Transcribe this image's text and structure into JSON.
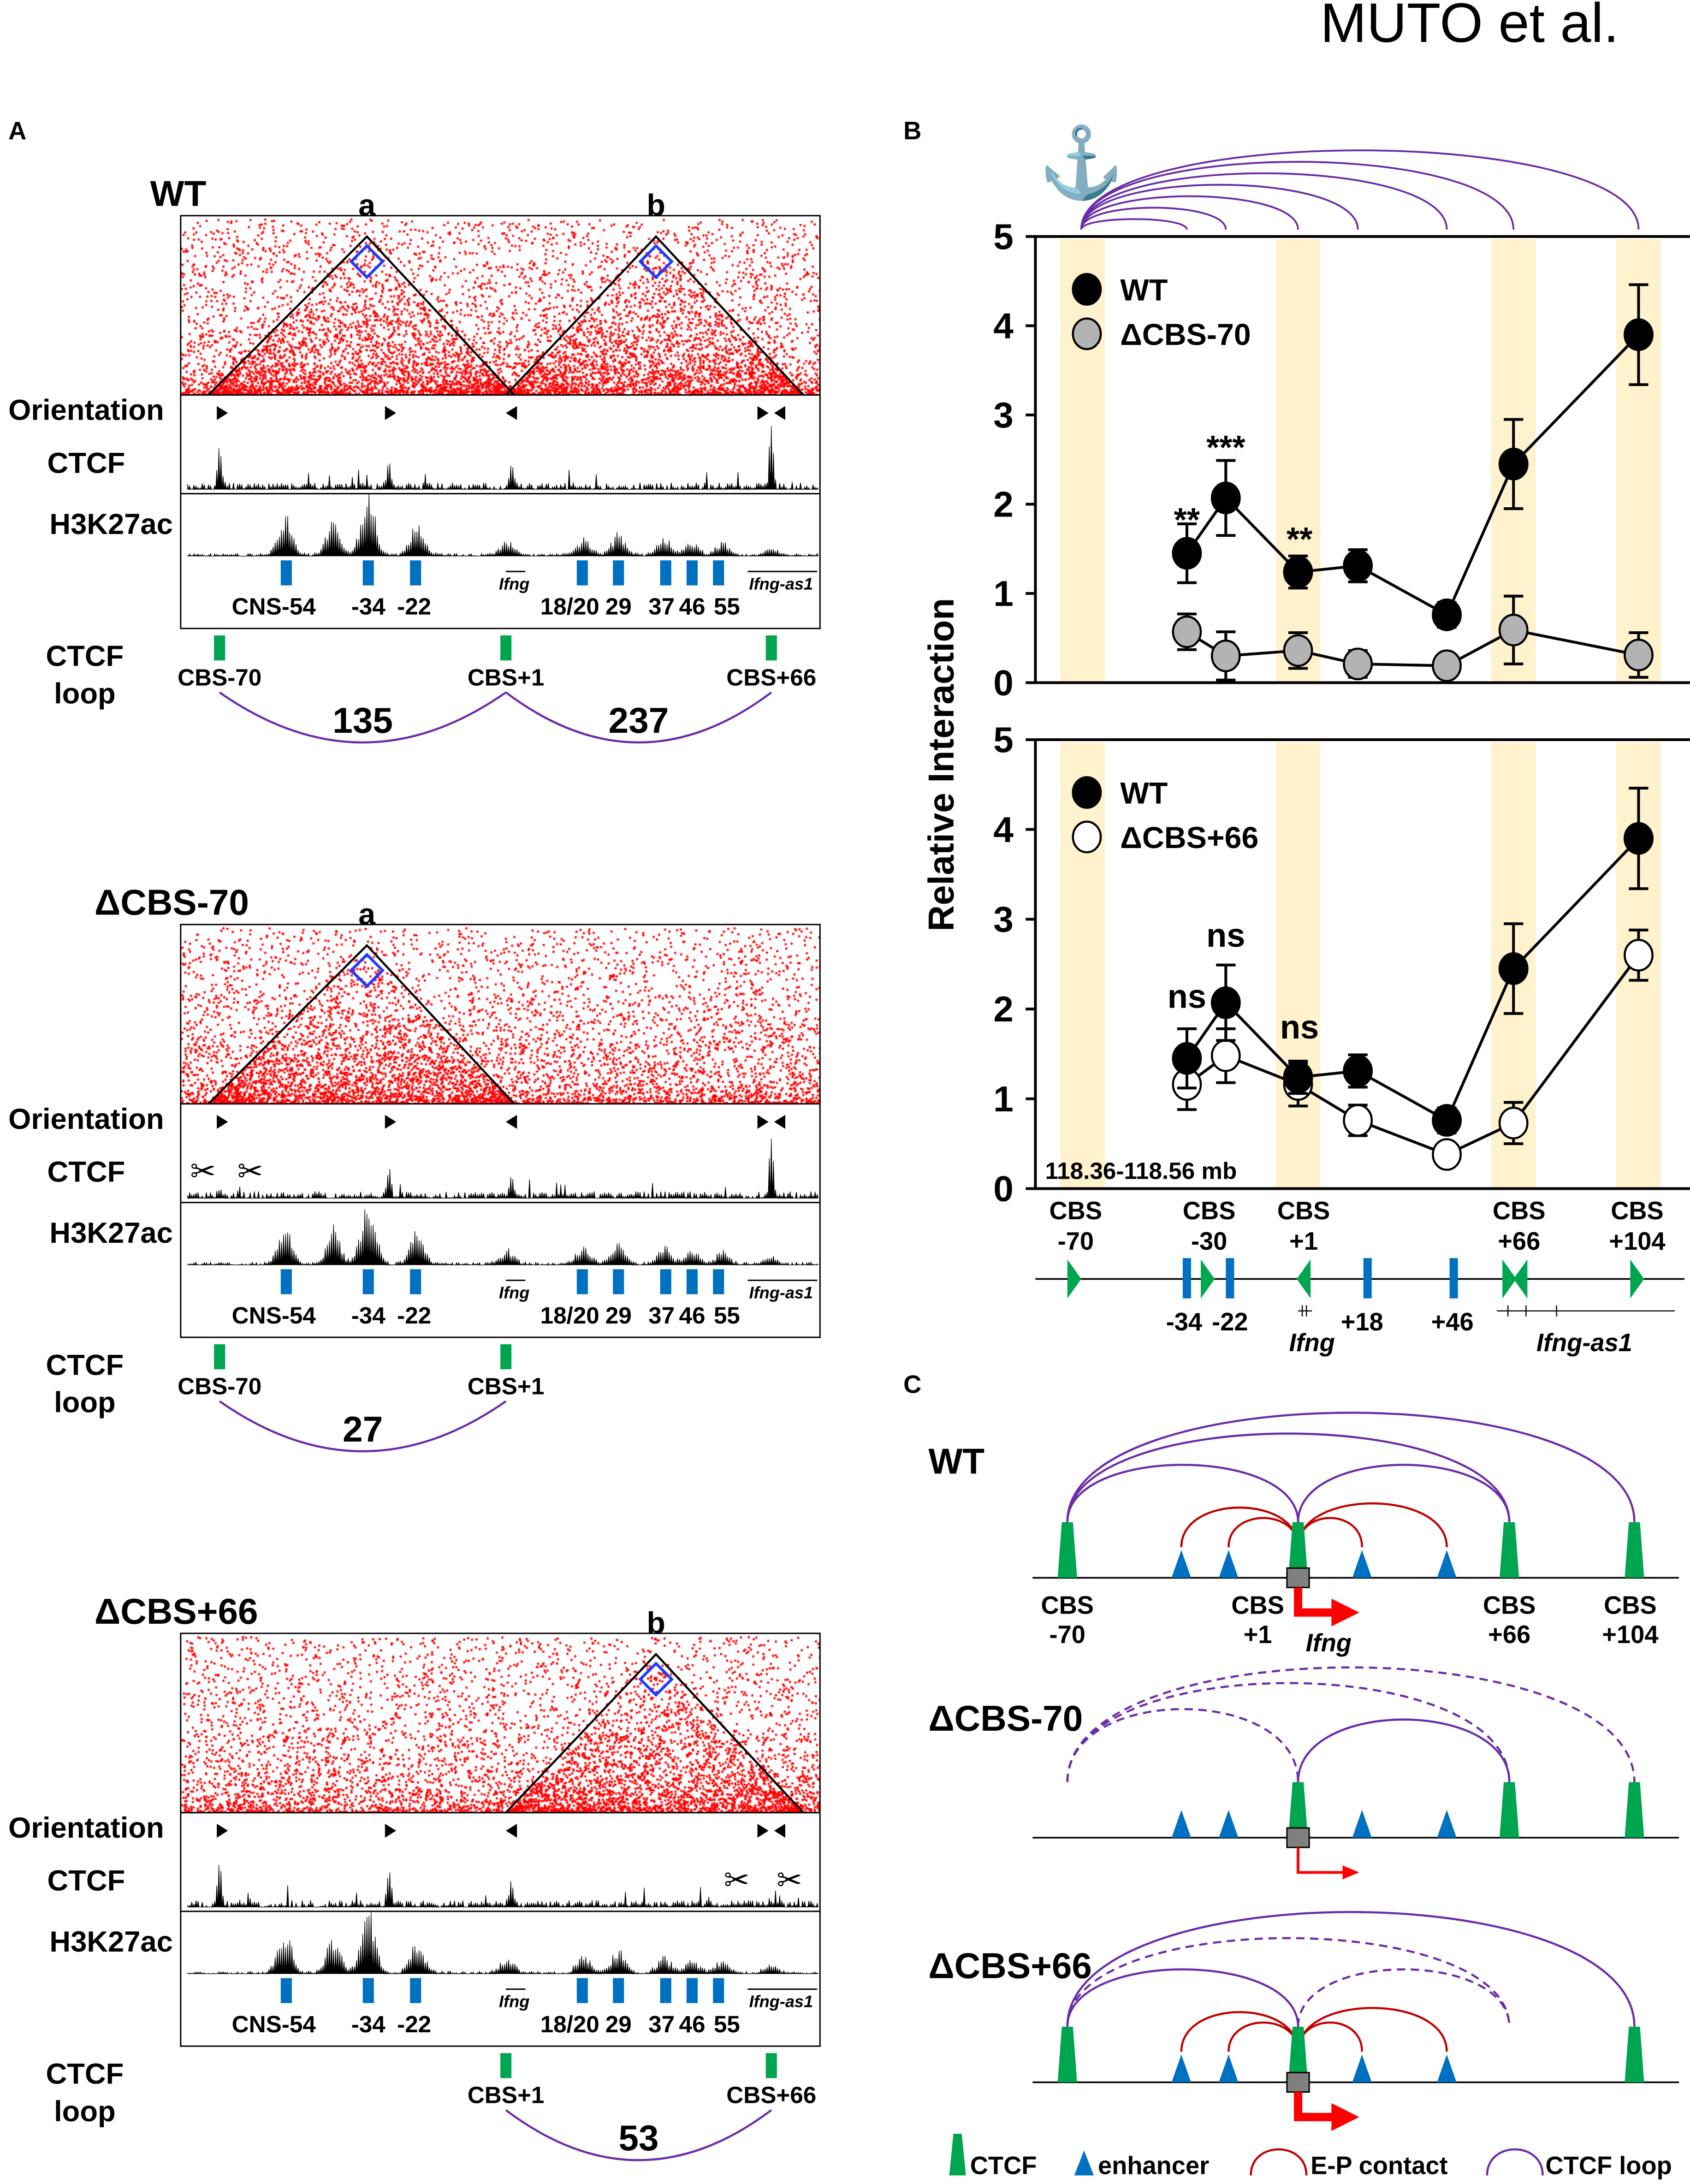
{
  "header": {
    "authors": "MUTO et al."
  },
  "panel_labels": {
    "a": "A",
    "b": "B",
    "c": "C"
  },
  "panelA": {
    "track_labels": {
      "orientation": "Orientation",
      "ctcf": "CTCF",
      "h3k27ac": "H3K27ac",
      "loop_line1": "CTCF",
      "loop_line2": "loop"
    },
    "genes": {
      "ifng": "Ifng",
      "ifng_as1": "Ifng-as1"
    },
    "enhancer_labels": [
      "CNS-54",
      "-34",
      "-22",
      "18/20",
      "29",
      "37",
      "46",
      "55"
    ],
    "conditions": [
      {
        "name": "WT",
        "domains": [
          "a",
          "b"
        ],
        "cbs": [
          "CBS-70",
          "CBS+1",
          "CBS+66"
        ],
        "loops": [
          "135",
          "237"
        ]
      },
      {
        "name": "ΔCBS-70",
        "domains": [
          "a"
        ],
        "cbs": [
          "CBS-70",
          "CBS+1"
        ],
        "loops": [
          "27"
        ]
      },
      {
        "name": "ΔCBS+66",
        "domains": [
          "b"
        ],
        "cbs": [
          "CBS+1",
          "CBS+66"
        ],
        "loops": [
          "53"
        ]
      }
    ]
  },
  "panelB": {
    "region": "118.36-118.56 mb",
    "x_labels": [
      [
        "CBS",
        "-70"
      ],
      [
        "CBS",
        "-30"
      ],
      [
        "CBS",
        "+1"
      ],
      [
        "CBS",
        "+66"
      ],
      [
        "CBS",
        "+104"
      ]
    ],
    "map_labels": [
      "-34",
      "-22",
      "+18",
      "+46"
    ],
    "genes": {
      "ifng": "Ifng",
      "ifng_as1": "Ifng-as1"
    }
  },
  "chart_data": [
    {
      "type": "line",
      "title": "",
      "xlabel": "",
      "ylabel": "Relative Interaction",
      "ylim": [
        0,
        5
      ],
      "yticks": [
        "0",
        "1",
        "2",
        "3",
        "4",
        "5"
      ],
      "x": [
        "-34",
        "CBS-30",
        "CBS+1",
        "+18",
        "+46",
        "CBS+66",
        "CBS+104"
      ],
      "series": [
        {
          "name": "WT",
          "color": "#000000",
          "values": [
            1.45,
            2.07,
            1.24,
            1.31,
            0.76,
            2.45,
            3.9
          ],
          "error": [
            0.33,
            0.42,
            0.18,
            0.18,
            0.14,
            0.5,
            0.56
          ]
        },
        {
          "name": "ΔCBS-70",
          "color": "#b3b3b3",
          "values": [
            0.57,
            0.3,
            0.36,
            0.21,
            0.19,
            0.59,
            0.31
          ],
          "error": [
            0.2,
            0.27,
            0.2,
            0.15,
            0.03,
            0.38,
            0.25
          ]
        }
      ],
      "significance": [
        "**",
        "***",
        "**"
      ],
      "legend": "top-left"
    },
    {
      "type": "line",
      "title": "",
      "xlabel": "",
      "ylabel": "Relative Interaction",
      "ylim": [
        0,
        5
      ],
      "yticks": [
        "0",
        "1",
        "2",
        "3",
        "4",
        "5"
      ],
      "x": [
        "-34",
        "CBS-30",
        "CBS+1",
        "+18",
        "+46",
        "CBS+66",
        "CBS+104"
      ],
      "series": [
        {
          "name": "WT",
          "color": "#000000",
          "values": [
            1.45,
            2.07,
            1.24,
            1.31,
            0.76,
            2.45,
            3.9
          ],
          "error": [
            0.33,
            0.42,
            0.18,
            0.18,
            0.14,
            0.5,
            0.56
          ]
        },
        {
          "name": "ΔCBS+66",
          "color": "#ffffff",
          "values": [
            1.16,
            1.48,
            1.16,
            0.76,
            0.38,
            0.73,
            2.6
          ],
          "error": [
            0.28,
            0.3,
            0.24,
            0.17,
            0.03,
            0.23,
            0.28
          ]
        }
      ],
      "significance": [
        "ns",
        "ns",
        "ns"
      ],
      "legend": "top-left"
    }
  ],
  "panelC": {
    "conditions": [
      "WT",
      "ΔCBS-70",
      "ΔCBS+66"
    ],
    "cbs_labels": [
      [
        "CBS",
        "-70"
      ],
      [
        "CBS",
        "+1"
      ],
      [
        "CBS",
        "+66"
      ],
      [
        "CBS",
        "+104"
      ]
    ],
    "gene": "Ifng",
    "legend": [
      "CTCF",
      "enhancer",
      "E-P contact",
      "CTCF loop"
    ]
  },
  "colors": {
    "hic": "#ff0000",
    "ctcf": "#00a550",
    "enhancer": "#0070c0",
    "loop": "#6a2ca8",
    "ep": "#c00000",
    "band": "#fff2cc"
  }
}
